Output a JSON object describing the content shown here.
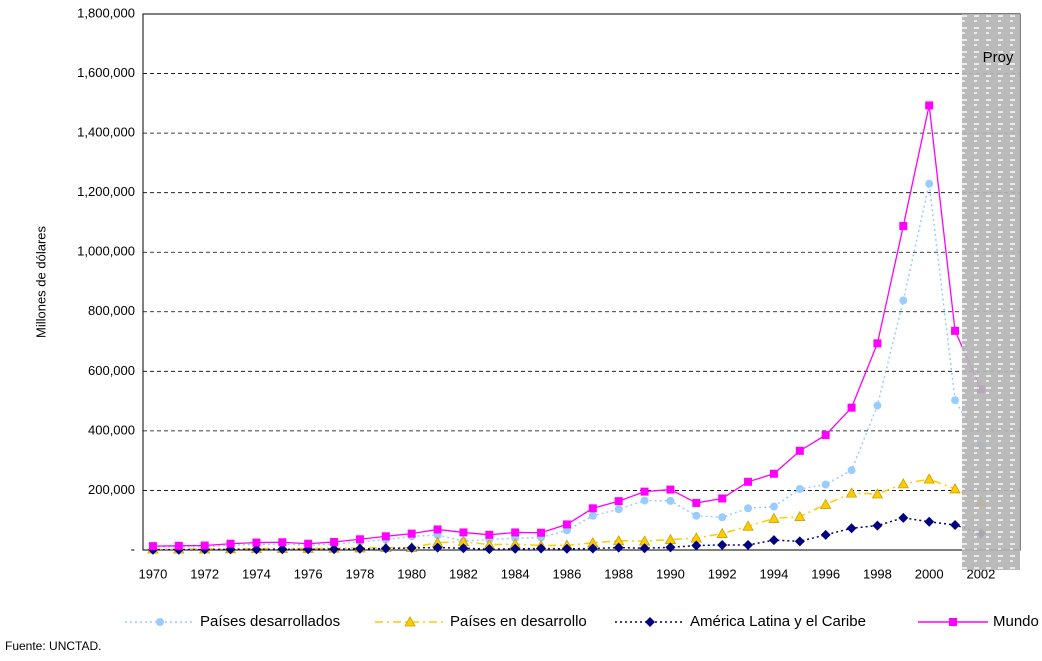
{
  "chart_data": {
    "type": "line",
    "ylabel": "Millones de dólares",
    "source": "Fuente: UNCTAD.",
    "projection_label": "Proy",
    "categories": [
      "1970",
      null,
      "1972",
      null,
      "1974",
      null,
      "1976",
      null,
      "1978",
      null,
      "1980",
      null,
      "1982",
      null,
      "1984",
      null,
      "1986",
      null,
      "1988",
      null,
      "1990",
      null,
      "1992",
      null,
      "1994",
      null,
      "1996",
      null,
      "1998",
      null,
      "2000",
      null,
      "2002"
    ],
    "ylim": [
      0,
      1800000
    ],
    "yticks": [
      {
        "value": 0,
        "label": "-"
      },
      {
        "value": 200000,
        "label": "200,000"
      },
      {
        "value": 400000,
        "label": "400,000"
      },
      {
        "value": 600000,
        "label": "600,000"
      },
      {
        "value": 800000,
        "label": "800,000"
      },
      {
        "value": 1000000,
        "label": "1,000,000"
      },
      {
        "value": 1200000,
        "label": "1,200,000"
      },
      {
        "value": 1400000,
        "label": "1,400,000"
      },
      {
        "value": 1600000,
        "label": "1,600,000"
      },
      {
        "value": 1800000,
        "label": "1,800,000"
      }
    ],
    "grid": true,
    "legend": "bottom",
    "series": [
      {
        "name": "Países desarrollados",
        "color": "#99ccff",
        "marker": "circle",
        "dash": "dotted",
        "values": [
          10000,
          11000,
          12000,
          16000,
          19000,
          20000,
          16000,
          20000,
          27000,
          35000,
          46000,
          50000,
          30000,
          35000,
          40000,
          42000,
          66000,
          115000,
          137000,
          166000,
          165000,
          115000,
          110000,
          140000,
          146000,
          205000,
          220000,
          268000,
          485000,
          838000,
          1230000,
          503000,
          349000
        ]
      },
      {
        "name": "Países en desarrollo",
        "color": "#ffcc00",
        "marker": "triangle",
        "dash": "dashdot",
        "values": [
          3000,
          3000,
          3500,
          4000,
          5000,
          5000,
          5000,
          6000,
          7000,
          8000,
          8000,
          25000,
          28000,
          18000,
          20000,
          15000,
          16000,
          24000,
          31000,
          30000,
          35000,
          40000,
          55000,
          80000,
          106000,
          112000,
          153000,
          191000,
          188000,
          222000,
          238000,
          205000,
          162000
        ]
      },
      {
        "name": "América Latina y el Caribe",
        "color": "#000080",
        "marker": "diamond",
        "dash": "dotted",
        "values": [
          1000,
          1000,
          1500,
          2000,
          2000,
          2500,
          2500,
          3000,
          4000,
          5000,
          7000,
          8000,
          6000,
          3000,
          4000,
          5000,
          4000,
          5000,
          8000,
          6000,
          9000,
          15000,
          17000,
          17000,
          33000,
          29000,
          51000,
          73000,
          82000,
          108000,
          95000,
          84000,
          56000
        ]
      },
      {
        "name": "Mundo",
        "color": "#ff00ff",
        "marker": "square",
        "dash": "solid",
        "values": [
          13000,
          14000,
          15000,
          21000,
          25000,
          26000,
          21000,
          27000,
          36000,
          46000,
          55000,
          69000,
          59000,
          51000,
          59000,
          58000,
          86000,
          140000,
          164000,
          196000,
          203000,
          158000,
          173000,
          229000,
          256000,
          333000,
          386000,
          478000,
          694000,
          1088000,
          1493000,
          736000,
          540000
        ]
      }
    ]
  }
}
